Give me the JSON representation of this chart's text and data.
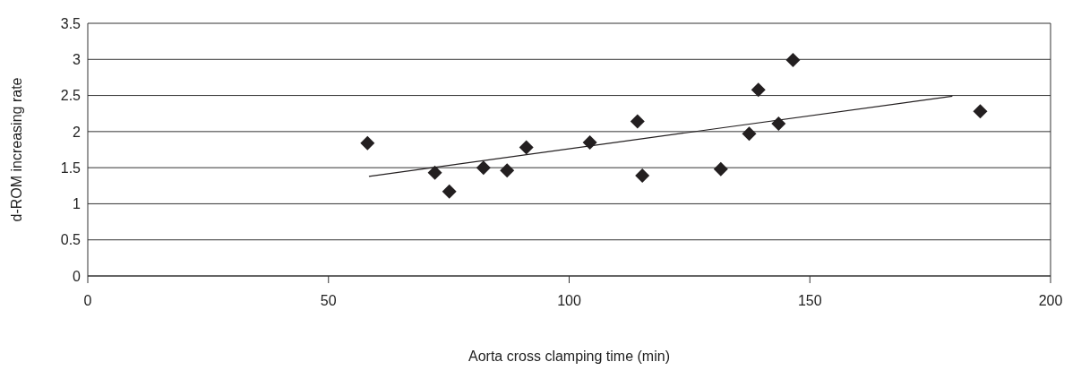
{
  "chart_data": {
    "type": "scatter",
    "xlabel": "Aorta cross clamping time (min)",
    "ylabel": "d-ROM increasing rate",
    "xlim": [
      0,
      200
    ],
    "xticks": [
      0,
      50,
      100,
      150,
      200
    ],
    "ylim": [
      0,
      3.5
    ],
    "yticks": [
      0,
      0.5,
      1,
      1.5,
      2,
      2.5,
      3,
      3.5
    ],
    "grid": "y",
    "legend": false,
    "marker": "diamond",
    "series": [
      {
        "type": "scatter",
        "color": "#231f20",
        "x": [
          58.1,
          72.1,
          75.1,
          82.2,
          87.1,
          91.1,
          104.3,
          114.2,
          115.2,
          131.5,
          137.4,
          139.3,
          143.5,
          146.5,
          185.4
        ],
        "values": [
          1.84,
          1.43,
          1.17,
          1.5,
          1.46,
          1.78,
          1.85,
          2.14,
          1.39,
          1.48,
          1.97,
          2.58,
          2.11,
          2.99,
          2.28
        ]
      },
      {
        "type": "line",
        "color": "#231f20",
        "marker": "none",
        "line_style": "solid",
        "x": [
          58.4,
          179.6
        ],
        "values": [
          1.38,
          2.49
        ]
      }
    ]
  }
}
